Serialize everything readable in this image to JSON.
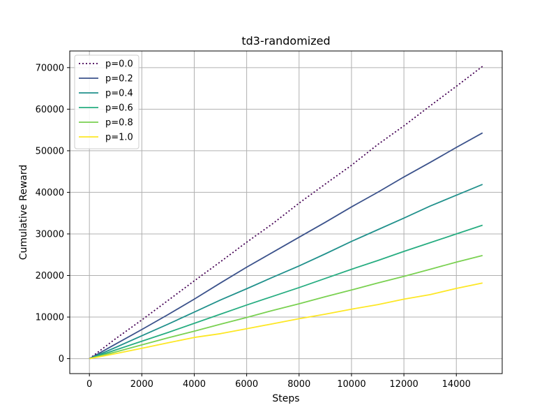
{
  "chart_data": {
    "type": "line",
    "title": "td3-randomized",
    "xlabel": "Steps",
    "ylabel": "Cumulative Reward",
    "xlim": [
      -750,
      15750
    ],
    "ylim": [
      -3600,
      74000
    ],
    "xticks": [
      0,
      2000,
      4000,
      6000,
      8000,
      10000,
      12000,
      14000
    ],
    "yticks": [
      0,
      10000,
      20000,
      30000,
      40000,
      50000,
      60000,
      70000
    ],
    "grid": true,
    "legend_position": "upper left",
    "x": [
      0,
      1000,
      2000,
      3000,
      4000,
      5000,
      6000,
      7000,
      8000,
      9000,
      10000,
      11000,
      12000,
      13000,
      14000,
      15000
    ],
    "series": [
      {
        "name": "p=0.0",
        "color": "#440154",
        "style": "dotted",
        "values": [
          0,
          4800,
          9300,
          14000,
          18700,
          23300,
          28000,
          32500,
          37400,
          42000,
          46500,
          51500,
          56000,
          60800,
          65500,
          70300
        ]
      },
      {
        "name": "p=0.2",
        "color": "#3b528b",
        "style": "solid",
        "values": [
          0,
          3500,
          7000,
          10600,
          14300,
          18200,
          22000,
          25600,
          29200,
          32800,
          36500,
          40000,
          43700,
          47200,
          50800,
          54300
        ]
      },
      {
        "name": "p=0.4",
        "color": "#21918c",
        "style": "solid",
        "values": [
          0,
          2700,
          5500,
          8300,
          11200,
          14100,
          16800,
          19600,
          22300,
          25200,
          28200,
          31000,
          33800,
          36700,
          39300,
          41900
        ]
      },
      {
        "name": "p=0.6",
        "color": "#27ad81",
        "style": "solid",
        "values": [
          0,
          2100,
          4200,
          6300,
          8500,
          10700,
          12900,
          15000,
          17100,
          19300,
          21500,
          23600,
          25800,
          27900,
          30000,
          32100
        ]
      },
      {
        "name": "p=0.8",
        "color": "#7ad151",
        "style": "solid",
        "values": [
          0,
          1600,
          3300,
          5000,
          6600,
          8300,
          9900,
          11600,
          13200,
          14900,
          16500,
          18200,
          19800,
          21500,
          23200,
          24800
        ]
      },
      {
        "name": "p=1.0",
        "color": "#fde725",
        "style": "solid",
        "values": [
          0,
          1200,
          2500,
          3800,
          5100,
          6000,
          7200,
          8400,
          9600,
          10700,
          11900,
          13000,
          14300,
          15400,
          16900,
          18200
        ]
      }
    ]
  }
}
